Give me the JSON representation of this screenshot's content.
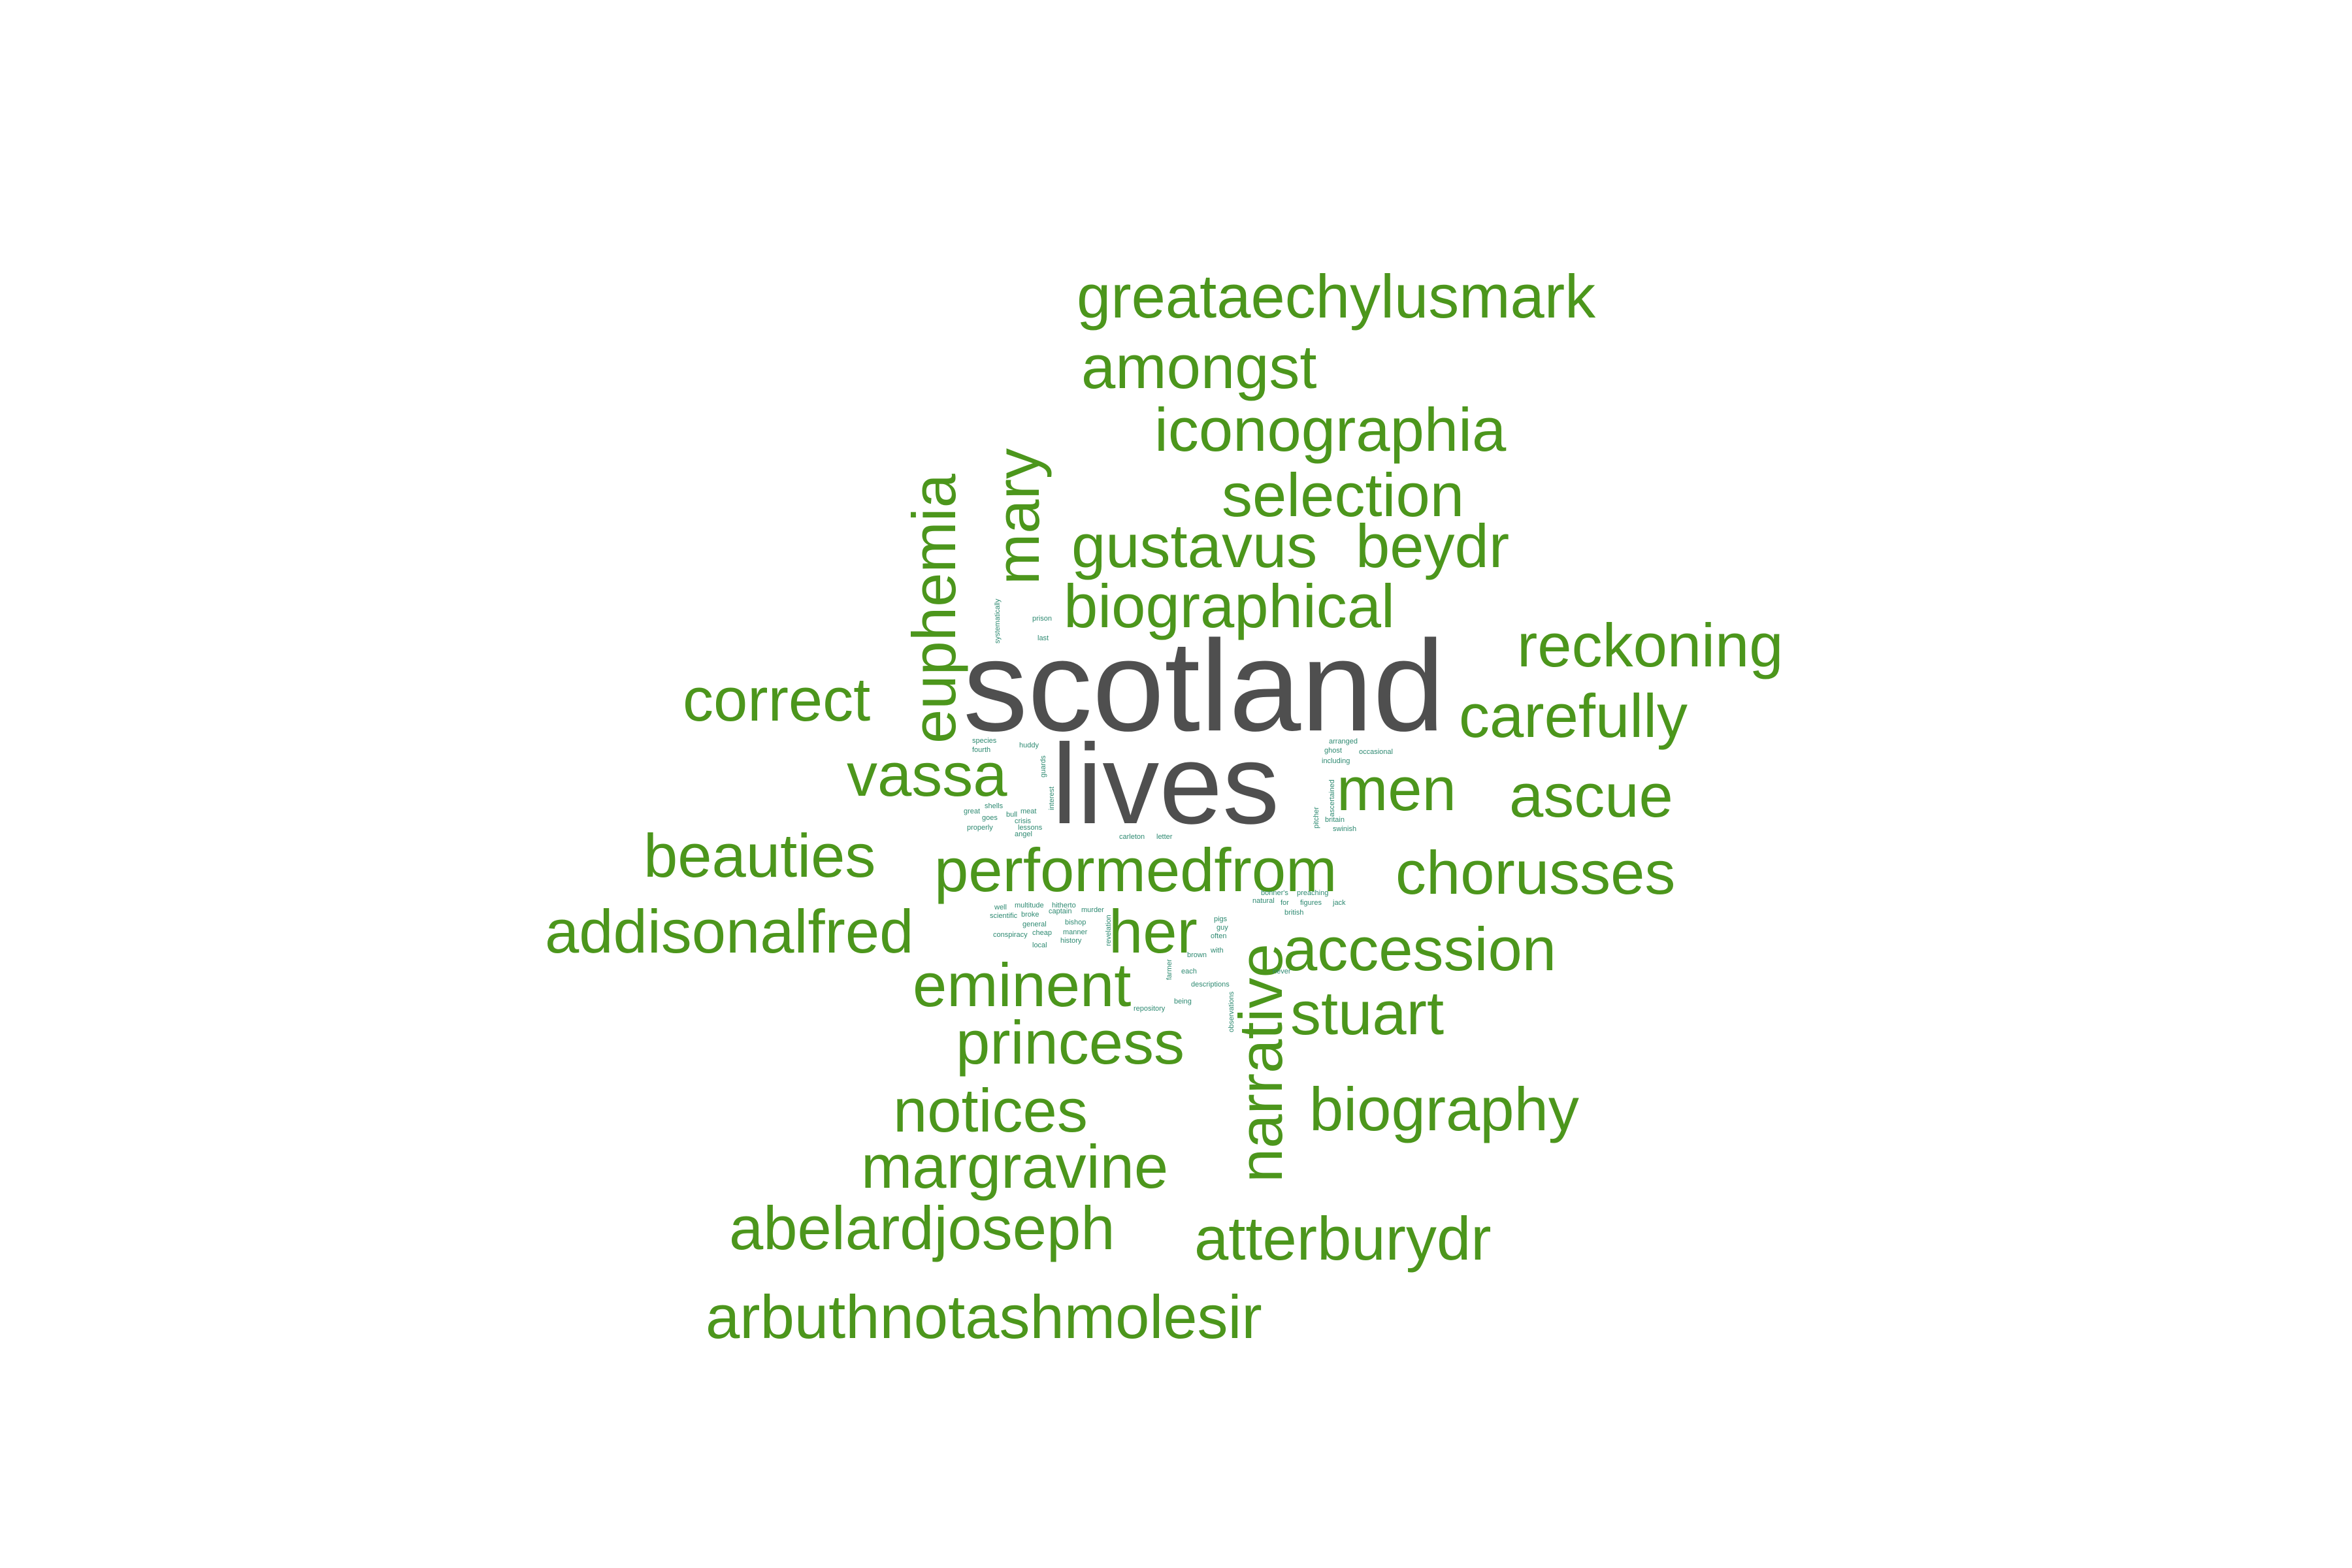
{
  "palette": {
    "primary": "#4f4f4f",
    "secondary": "#4c961c",
    "tiny": "#2f8a72"
  },
  "words": [
    {
      "text": "scotland",
      "weight": 1.0,
      "color": "primary"
    },
    {
      "text": "lives",
      "weight": 0.88,
      "color": "primary"
    },
    {
      "text": "greataechylusmark",
      "weight": 0.52,
      "color": "secondary"
    },
    {
      "text": "amongst",
      "weight": 0.52,
      "color": "secondary"
    },
    {
      "text": "iconographia",
      "weight": 0.52,
      "color": "secondary"
    },
    {
      "text": "selection",
      "weight": 0.52,
      "color": "secondary"
    },
    {
      "text": "gustavus",
      "weight": 0.52,
      "color": "secondary"
    },
    {
      "text": "beydr",
      "weight": 0.52,
      "color": "secondary"
    },
    {
      "text": "biographical",
      "weight": 0.52,
      "color": "secondary"
    },
    {
      "text": "reckoning",
      "weight": 0.52,
      "color": "secondary"
    },
    {
      "text": "correct",
      "weight": 0.52,
      "color": "secondary"
    },
    {
      "text": "carefully",
      "weight": 0.52,
      "color": "secondary"
    },
    {
      "text": "vassa",
      "weight": 0.52,
      "color": "secondary"
    },
    {
      "text": "men",
      "weight": 0.52,
      "color": "secondary"
    },
    {
      "text": "ascue",
      "weight": 0.52,
      "color": "secondary"
    },
    {
      "text": "beauties",
      "weight": 0.52,
      "color": "secondary"
    },
    {
      "text": "performedfrom",
      "weight": 0.52,
      "color": "secondary"
    },
    {
      "text": "chorusses",
      "weight": 0.52,
      "color": "secondary"
    },
    {
      "text": "addisonalfred",
      "weight": 0.52,
      "color": "secondary"
    },
    {
      "text": "her",
      "weight": 0.52,
      "color": "secondary"
    },
    {
      "text": "accession",
      "weight": 0.52,
      "color": "secondary"
    },
    {
      "text": "eminent",
      "weight": 0.52,
      "color": "secondary"
    },
    {
      "text": "stuart",
      "weight": 0.52,
      "color": "secondary"
    },
    {
      "text": "princess",
      "weight": 0.52,
      "color": "secondary"
    },
    {
      "text": "notices",
      "weight": 0.52,
      "color": "secondary"
    },
    {
      "text": "biography",
      "weight": 0.52,
      "color": "secondary"
    },
    {
      "text": "margravine",
      "weight": 0.52,
      "color": "secondary"
    },
    {
      "text": "abelardjoseph",
      "weight": 0.52,
      "color": "secondary"
    },
    {
      "text": "atterburydr",
      "weight": 0.52,
      "color": "secondary"
    },
    {
      "text": "arbuthnotashmolesir",
      "weight": 0.52,
      "color": "secondary"
    },
    {
      "text": "euphemia",
      "weight": 0.52,
      "color": "secondary"
    },
    {
      "text": "mary",
      "weight": 0.52,
      "color": "secondary"
    },
    {
      "text": "narrative",
      "weight": 0.52,
      "color": "secondary"
    },
    {
      "text": "systematically",
      "weight": 0.04,
      "color": "tiny"
    },
    {
      "text": "prison",
      "weight": 0.04,
      "color": "tiny"
    },
    {
      "text": "last",
      "weight": 0.04,
      "color": "tiny"
    },
    {
      "text": "species",
      "weight": 0.04,
      "color": "tiny"
    },
    {
      "text": "fourth",
      "weight": 0.04,
      "color": "tiny"
    },
    {
      "text": "huddy",
      "weight": 0.04,
      "color": "tiny"
    },
    {
      "text": "guards",
      "weight": 0.04,
      "color": "tiny"
    },
    {
      "text": "interest",
      "weight": 0.04,
      "color": "tiny"
    },
    {
      "text": "shells",
      "weight": 0.04,
      "color": "tiny"
    },
    {
      "text": "great",
      "weight": 0.04,
      "color": "tiny"
    },
    {
      "text": "goes",
      "weight": 0.04,
      "color": "tiny"
    },
    {
      "text": "bull",
      "weight": 0.04,
      "color": "tiny"
    },
    {
      "text": "meat",
      "weight": 0.04,
      "color": "tiny"
    },
    {
      "text": "crisis",
      "weight": 0.04,
      "color": "tiny"
    },
    {
      "text": "properly",
      "weight": 0.04,
      "color": "tiny"
    },
    {
      "text": "lessons",
      "weight": 0.04,
      "color": "tiny"
    },
    {
      "text": "angel",
      "weight": 0.04,
      "color": "tiny"
    },
    {
      "text": "arranged",
      "weight": 0.04,
      "color": "tiny"
    },
    {
      "text": "ghost",
      "weight": 0.04,
      "color": "tiny"
    },
    {
      "text": "occasional",
      "weight": 0.04,
      "color": "tiny"
    },
    {
      "text": "including",
      "weight": 0.04,
      "color": "tiny"
    },
    {
      "text": "pitcher",
      "weight": 0.04,
      "color": "tiny"
    },
    {
      "text": "ascertained",
      "weight": 0.04,
      "color": "tiny"
    },
    {
      "text": "britain",
      "weight": 0.04,
      "color": "tiny"
    },
    {
      "text": "swinish",
      "weight": 0.04,
      "color": "tiny"
    },
    {
      "text": "carleton",
      "weight": 0.04,
      "color": "tiny"
    },
    {
      "text": "letter",
      "weight": 0.04,
      "color": "tiny"
    },
    {
      "text": "bonner's",
      "weight": 0.04,
      "color": "tiny"
    },
    {
      "text": "preaching",
      "weight": 0.04,
      "color": "tiny"
    },
    {
      "text": "natural",
      "weight": 0.04,
      "color": "tiny"
    },
    {
      "text": "for",
      "weight": 0.04,
      "color": "tiny"
    },
    {
      "text": "figures",
      "weight": 0.04,
      "color": "tiny"
    },
    {
      "text": "jack",
      "weight": 0.04,
      "color": "tiny"
    },
    {
      "text": "british",
      "weight": 0.04,
      "color": "tiny"
    },
    {
      "text": "well",
      "weight": 0.04,
      "color": "tiny"
    },
    {
      "text": "multitude",
      "weight": 0.04,
      "color": "tiny"
    },
    {
      "text": "hitherto",
      "weight": 0.04,
      "color": "tiny"
    },
    {
      "text": "scientific",
      "weight": 0.04,
      "color": "tiny"
    },
    {
      "text": "broke",
      "weight": 0.04,
      "color": "tiny"
    },
    {
      "text": "captain",
      "weight": 0.04,
      "color": "tiny"
    },
    {
      "text": "murder",
      "weight": 0.04,
      "color": "tiny"
    },
    {
      "text": "general",
      "weight": 0.04,
      "color": "tiny"
    },
    {
      "text": "bishop",
      "weight": 0.04,
      "color": "tiny"
    },
    {
      "text": "conspiracy",
      "weight": 0.04,
      "color": "tiny"
    },
    {
      "text": "cheap",
      "weight": 0.04,
      "color": "tiny"
    },
    {
      "text": "manner",
      "weight": 0.04,
      "color": "tiny"
    },
    {
      "text": "local",
      "weight": 0.04,
      "color": "tiny"
    },
    {
      "text": "history",
      "weight": 0.04,
      "color": "tiny"
    },
    {
      "text": "pigs",
      "weight": 0.04,
      "color": "tiny"
    },
    {
      "text": "guy",
      "weight": 0.04,
      "color": "tiny"
    },
    {
      "text": "often",
      "weight": 0.04,
      "color": "tiny"
    },
    {
      "text": "with",
      "weight": 0.04,
      "color": "tiny"
    },
    {
      "text": "brown",
      "weight": 0.04,
      "color": "tiny"
    },
    {
      "text": "never",
      "weight": 0.04,
      "color": "tiny"
    },
    {
      "text": "each",
      "weight": 0.04,
      "color": "tiny"
    },
    {
      "text": "descriptions",
      "weight": 0.04,
      "color": "tiny"
    },
    {
      "text": "being",
      "weight": 0.04,
      "color": "tiny"
    },
    {
      "text": "repository",
      "weight": 0.04,
      "color": "tiny"
    },
    {
      "text": "observations",
      "weight": 0.04,
      "color": "tiny"
    },
    {
      "text": "revelation",
      "weight": 0.04,
      "color": "tiny"
    },
    {
      "text": "farmer",
      "weight": 0.04,
      "color": "tiny"
    }
  ]
}
